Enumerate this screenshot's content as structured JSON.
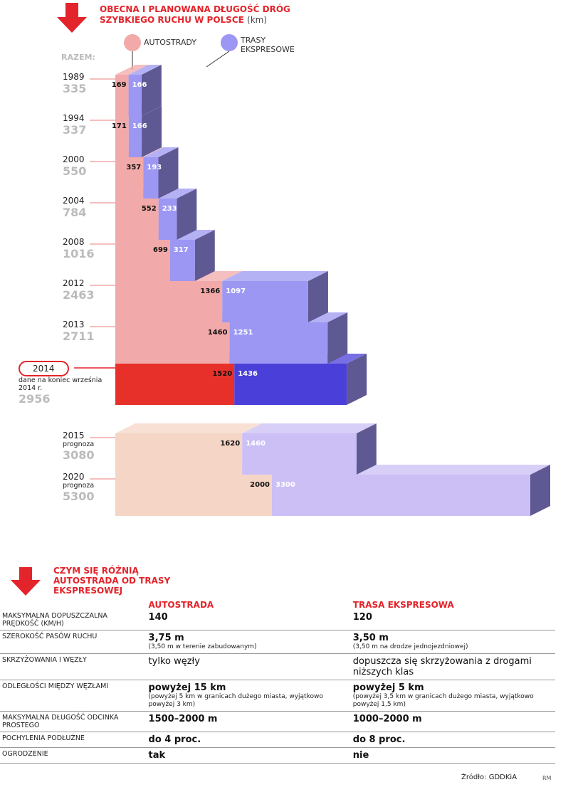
{
  "chart_data": {
    "type": "bar",
    "stacked": true,
    "orientation": "horizontal",
    "title": "OBECNA I PLANOWANA DŁUGOŚĆ DRÓG SZYBKIEGO RUCHU W POLSCE",
    "unit": "(km)",
    "total_label": "RAZEM:",
    "categories": [
      "1989",
      "1994",
      "2000",
      "2004",
      "2008",
      "2012",
      "2013",
      "2014",
      "2015",
      "2020"
    ],
    "category_notes": [
      null,
      null,
      null,
      null,
      null,
      null,
      null,
      "dane na koniec września 2014 r.",
      "prognoza",
      "prognoza"
    ],
    "totals": [
      335,
      337,
      550,
      784,
      1016,
      2463,
      2711,
      2956,
      3080,
      5300
    ],
    "highlight": "2014",
    "forecast_from": "2015",
    "series": [
      {
        "name": "AUTOSTRADY",
        "color": "#f2a9a9",
        "highlight_color": "#e8302a",
        "forecast_color": "#f5d5c6",
        "values": [
          169,
          171,
          357,
          552,
          699,
          1366,
          1460,
          1520,
          1620,
          2000
        ]
      },
      {
        "name": "TRASY EKSPRESOWE",
        "color": "#9c97f2",
        "highlight_color": "#4b3fd9",
        "forecast_color": "#cbbff5",
        "values": [
          166,
          166,
          193,
          233,
          317,
          1097,
          1251,
          1436,
          1460,
          3300
        ]
      }
    ]
  },
  "comparison": {
    "title": "CZYM SIĘ RÓŻNIĄ AUTOSTRADA OD TRASY EKSPRESOWEJ",
    "columns": [
      "AUTOSTRADA",
      "TRASA EKSPRESOWA"
    ],
    "rows": [
      {
        "label": "MAKSYMALNA DOPUSZCZALNA PRĘDKOŚĆ (KM/H)",
        "cells": [
          {
            "main": "140"
          },
          {
            "main": "120"
          }
        ]
      },
      {
        "label": "SZEROKOŚĆ PASÓW RUCHU",
        "cells": [
          {
            "main": "3,75 m",
            "sub": "(3,50 m w terenie zabudowanym)"
          },
          {
            "main": "3,50 m",
            "sub": "(3,50 m na drodze jednojezdniowej)"
          }
        ]
      },
      {
        "label": "SKRZYŻOWANIA I WĘZŁY",
        "emphasis": false,
        "cells": [
          {
            "main": "tylko węzły"
          },
          {
            "main": "dopuszcza się skrzyżowania z drogami niższych klas"
          }
        ]
      },
      {
        "label": "ODLEGŁOŚCI MIĘDZY WĘZŁAMI",
        "cells": [
          {
            "main": "powyżej 15 km",
            "sub": "(powyżej 5 km w granicach dużego miasta, wyjątkowo powyżej 3 km)"
          },
          {
            "main": "powyżej 5 km",
            "sub": "(powyżej 3,5 km w granicach dużego miasta, wyjątkowo powyżej 1,5 km)"
          }
        ]
      },
      {
        "label": "MAKSYMALNA DŁUGOŚĆ ODCINKA PROSTEGO",
        "cells": [
          {
            "main": "1500–2000 m"
          },
          {
            "main": "1000–2000 m"
          }
        ]
      },
      {
        "label": "POCHYLENIA PODŁUŻNE",
        "cells": [
          {
            "main": "do 4 proc."
          },
          {
            "main": "do 8 proc."
          }
        ]
      },
      {
        "label": "OGRODZENIE",
        "cells": [
          {
            "main": "tak"
          },
          {
            "main": "nie"
          }
        ]
      }
    ],
    "source": "Źródło: GDDKiA",
    "signature": "RM"
  }
}
